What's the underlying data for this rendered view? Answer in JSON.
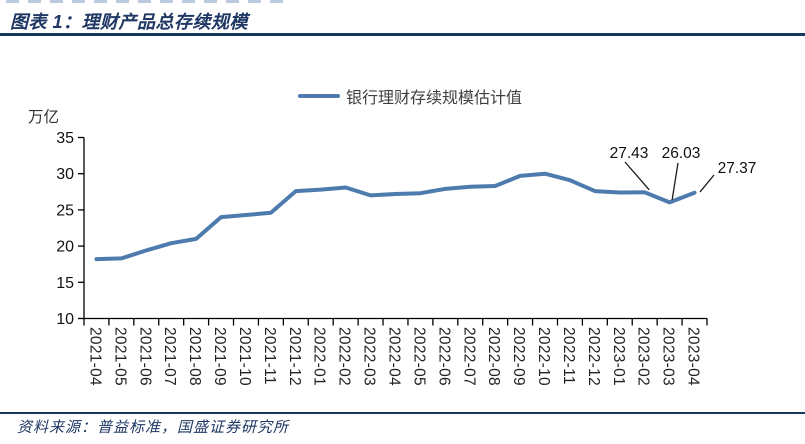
{
  "header": {
    "title": "图表 1：理财产品总存续规模"
  },
  "legend": {
    "label": "银行理财存续规模估计值"
  },
  "footer": {
    "source": "资料来源：普益标准，国盛证券研究所"
  },
  "colors": {
    "title_navy": "#1F3864",
    "rule_navy": "#17375E",
    "line_blue": "#4E7BAE",
    "annotation_black": "#111111"
  },
  "chart_data": {
    "type": "line",
    "title": "理财产品总存续规模",
    "unit_label": "万亿",
    "ylabel": "万亿",
    "xlabel": "",
    "ylim": [
      10,
      35
    ],
    "yticks": [
      10,
      15,
      20,
      25,
      30,
      35
    ],
    "grid": false,
    "legend_position": "top-center",
    "x": [
      "2021-04",
      "2021-05",
      "2021-06",
      "2021-07",
      "2021-08",
      "2021-09",
      "2021-10",
      "2021-11",
      "2021-12",
      "2022-01",
      "2022-02",
      "2022-03",
      "2022-04",
      "2022-05",
      "2022-06",
      "2022-07",
      "2022-08",
      "2022-09",
      "2022-10",
      "2022-11",
      "2022-12",
      "2023-01",
      "2023-02",
      "2023-03",
      "2023-04"
    ],
    "series": [
      {
        "name": "银行理财存续规模估计值",
        "color": "#4E7BAE",
        "values": [
          18.2,
          18.3,
          19.4,
          20.4,
          21.0,
          24.0,
          24.3,
          24.6,
          27.6,
          27.8,
          28.1,
          27.0,
          27.2,
          27.3,
          27.9,
          28.2,
          28.3,
          29.7,
          30.0,
          29.1,
          27.6,
          27.4,
          27.43,
          26.03,
          27.37
        ]
      }
    ],
    "annotations": [
      {
        "category": "2023-02",
        "value": 27.43,
        "label": "27.43"
      },
      {
        "category": "2023-03",
        "value": 26.03,
        "label": "26.03"
      },
      {
        "category": "2023-04",
        "value": 27.37,
        "label": "27.37"
      }
    ]
  }
}
